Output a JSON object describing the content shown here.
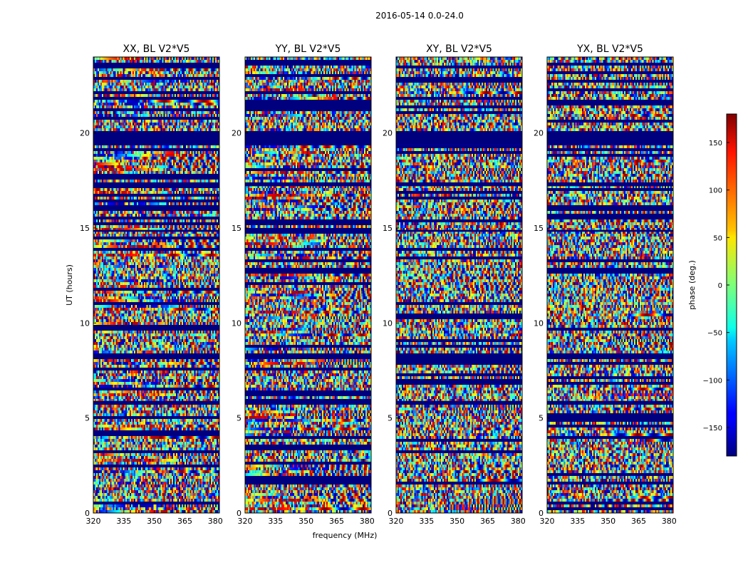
{
  "chart_data": {
    "type": "heatmap",
    "suptitle": "2016-05-14 0.0-24.0",
    "xlabel": "frequency (MHz)",
    "ylabel": "UT (hours)",
    "xlim": [
      320,
      382
    ],
    "ylim": [
      0,
      24
    ],
    "x_ticks": [
      "320",
      "335",
      "350",
      "365",
      "380"
    ],
    "y_ticks": [
      "0",
      "5",
      "10",
      "15",
      "20"
    ],
    "panels": [
      {
        "title": "XX, BL V2*V5"
      },
      {
        "title": "YY, BL V2*V5"
      },
      {
        "title": "XY, BL V2*V5"
      },
      {
        "title": "YX, BL V2*V5"
      }
    ],
    "colorbar": {
      "label": "phase (deg.)",
      "range": [
        -180,
        180
      ],
      "ticks": [
        "150",
        "100",
        "50",
        "0",
        "−50",
        "−100",
        "−150"
      ],
      "colormap": "jet"
    },
    "masked_bands_hours": [
      [
        19.4,
        20.1
      ],
      [
        17.2,
        17.4
      ],
      [
        8.1,
        8.4
      ],
      [
        5.7,
        5.9
      ],
      [
        14.8,
        14.9
      ]
    ]
  }
}
